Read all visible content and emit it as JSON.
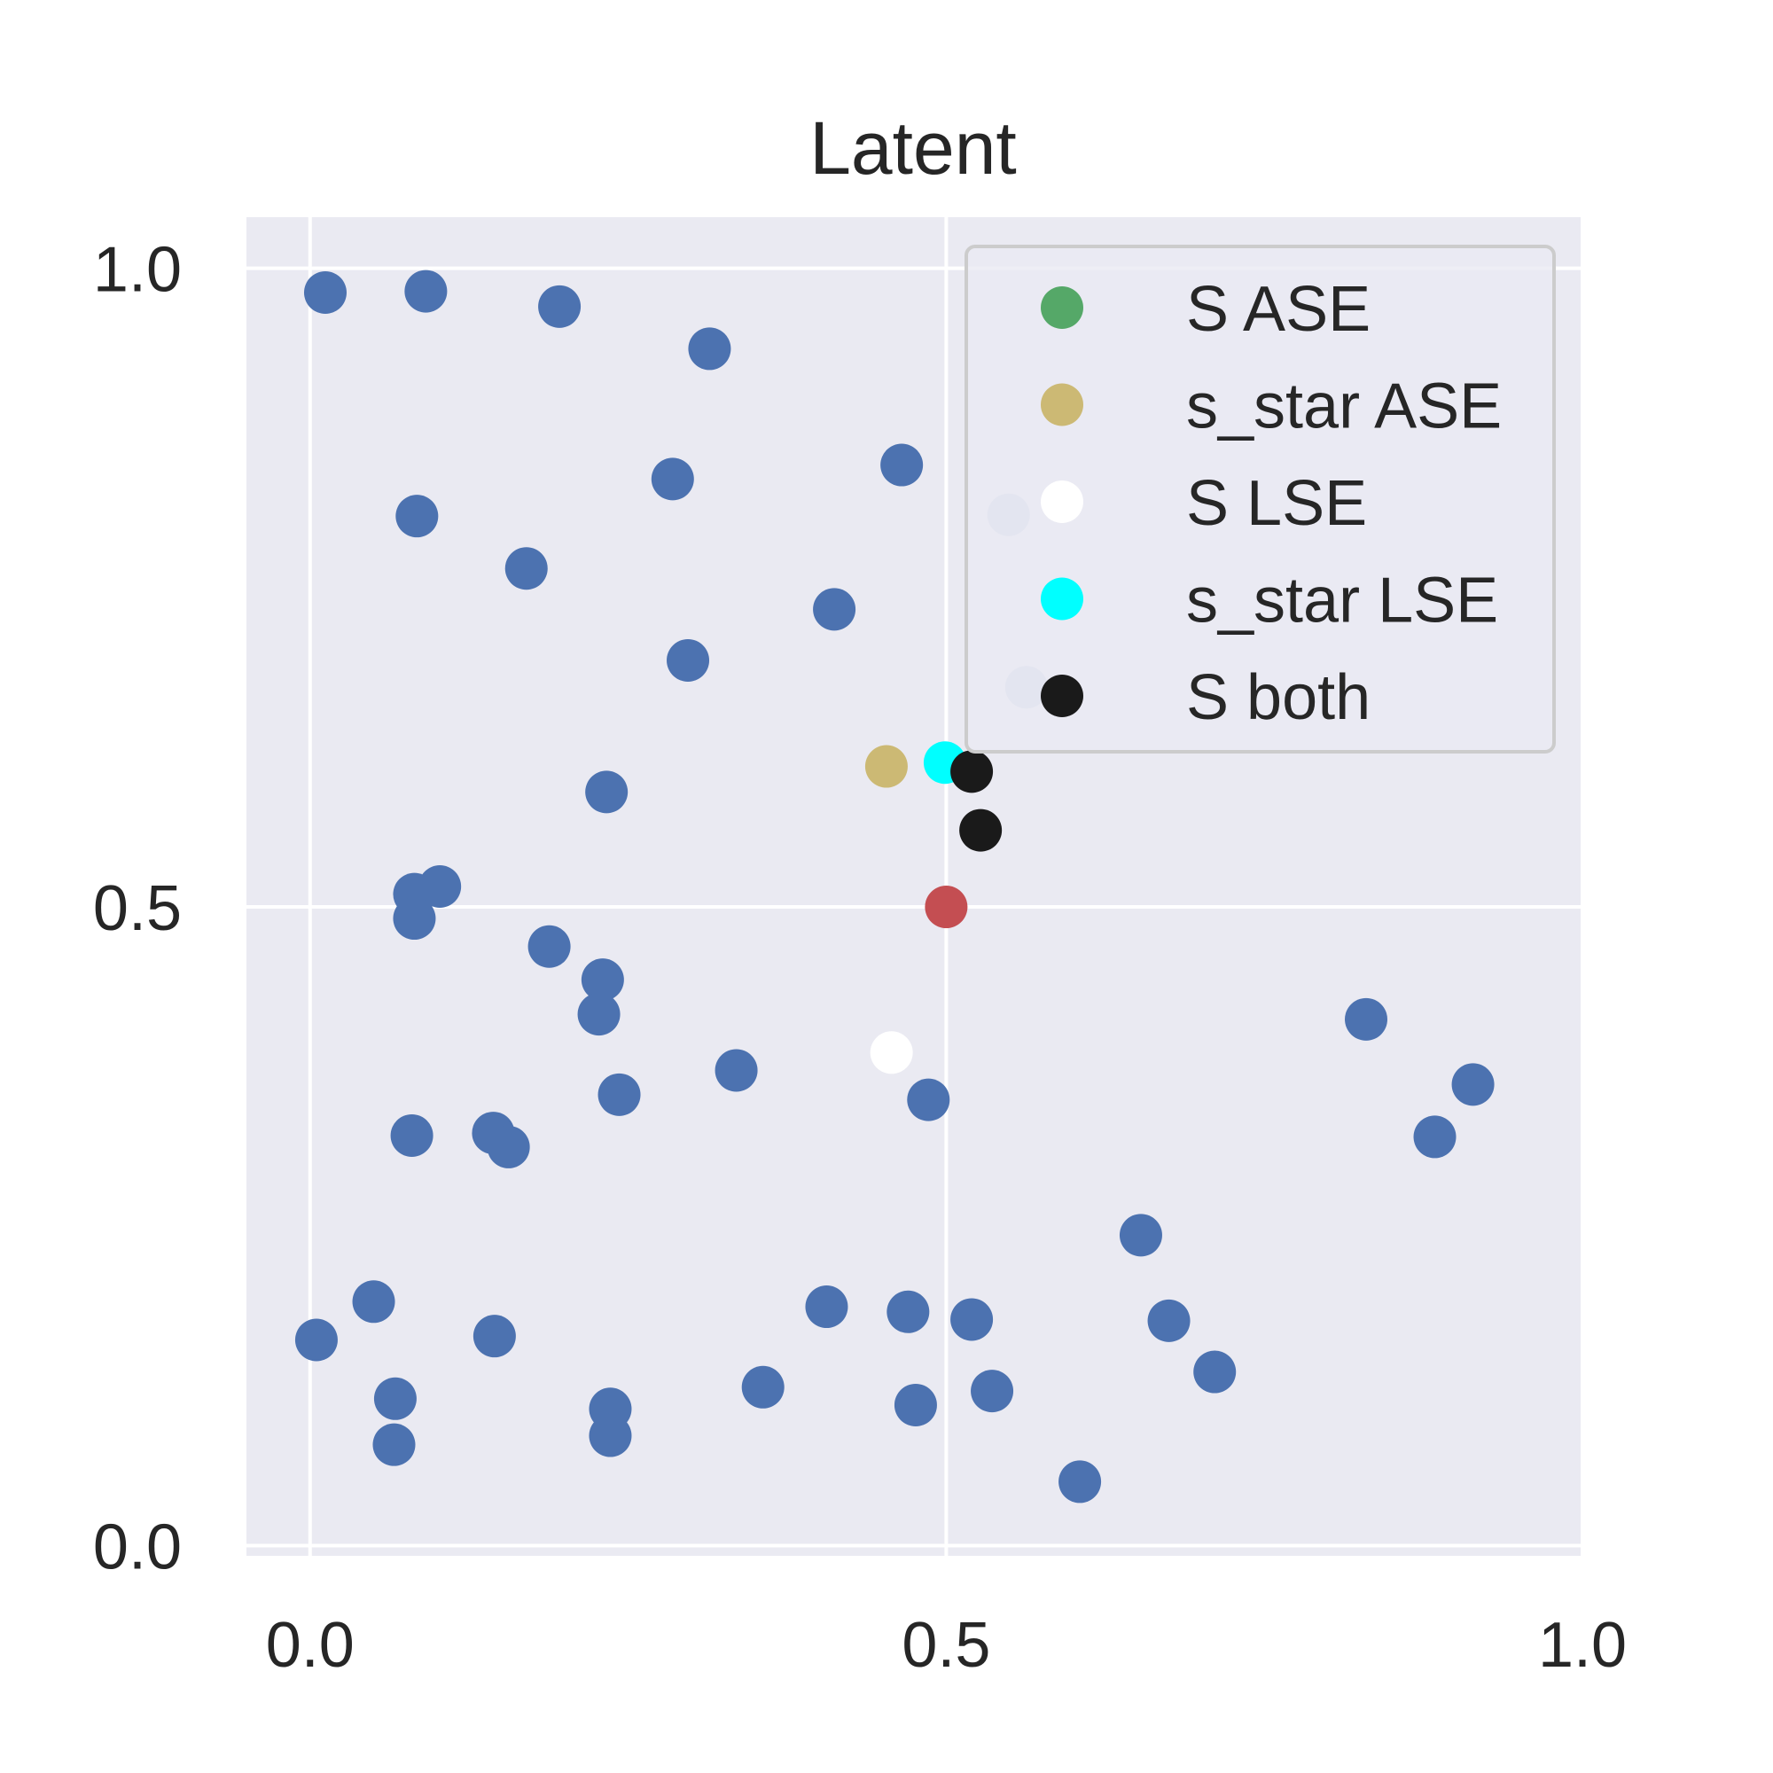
{
  "chart_data": {
    "type": "scatter",
    "title": "Latent",
    "xlabel": "",
    "ylabel": "",
    "xlim": [
      -0.05,
      1.0
    ],
    "ylim": [
      -0.008,
      1.04
    ],
    "xticks": [
      0.0,
      0.5,
      1.0
    ],
    "yticks": [
      0.0,
      0.5,
      1.0
    ],
    "xtick_labels": [
      "0.0",
      "0.5",
      "1.0"
    ],
    "ytick_labels": [
      "0.0",
      "0.5",
      "1.0"
    ],
    "grid": true,
    "background": "#eaeaf2",
    "grid_color": "#ffffff",
    "legend_position": "top-right",
    "series": [
      {
        "label": "",
        "color": "#4c72b0",
        "points": [
          [
            0.012,
            0.981
          ],
          [
            0.091,
            0.982
          ],
          [
            0.196,
            0.97
          ],
          [
            0.314,
            0.937
          ],
          [
            0.465,
            0.846
          ],
          [
            0.285,
            0.835
          ],
          [
            0.084,
            0.806
          ],
          [
            0.17,
            0.765
          ],
          [
            0.412,
            0.733
          ],
          [
            0.297,
            0.693
          ],
          [
            0.233,
            0.59
          ],
          [
            0.102,
            0.516
          ],
          [
            0.082,
            0.51
          ],
          [
            0.082,
            0.491
          ],
          [
            0.188,
            0.469
          ],
          [
            0.23,
            0.443
          ],
          [
            0.227,
            0.416
          ],
          [
            0.335,
            0.372
          ],
          [
            0.243,
            0.353
          ],
          [
            0.486,
            0.349
          ],
          [
            0.08,
            0.321
          ],
          [
            0.144,
            0.323
          ],
          [
            0.156,
            0.312
          ],
          [
            0.83,
            0.412
          ],
          [
            0.914,
            0.361
          ],
          [
            0.884,
            0.32
          ],
          [
            0.653,
            0.243
          ],
          [
            0.05,
            0.191
          ],
          [
            0.005,
            0.161
          ],
          [
            0.145,
            0.164
          ],
          [
            0.406,
            0.187
          ],
          [
            0.47,
            0.183
          ],
          [
            0.52,
            0.177
          ],
          [
            0.675,
            0.176
          ],
          [
            0.711,
            0.136
          ],
          [
            0.067,
            0.115
          ],
          [
            0.236,
            0.107
          ],
          [
            0.236,
            0.086
          ],
          [
            0.066,
            0.079
          ],
          [
            0.356,
            0.124
          ],
          [
            0.476,
            0.11
          ],
          [
            0.536,
            0.121
          ],
          [
            0.605,
            0.05
          ]
        ]
      },
      {
        "label": "",
        "color": "#c9d1e4",
        "points": [
          [
            0.549,
            0.807
          ],
          [
            0.563,
            0.672
          ]
        ]
      },
      {
        "label": "s_star ASE",
        "color": "#ccb974",
        "points": [
          [
            0.453,
            0.61
          ]
        ]
      },
      {
        "label": "S LSE",
        "color": "#ffffff",
        "points": [
          [
            0.457,
            0.386
          ]
        ]
      },
      {
        "label": "s_star LSE",
        "color": "#00ffff",
        "points": [
          [
            0.499,
            0.613
          ]
        ]
      },
      {
        "label": "S both",
        "color": "#1a1a1a",
        "points": [
          [
            0.52,
            0.606
          ],
          [
            0.527,
            0.56
          ]
        ]
      },
      {
        "label": "",
        "color": "#c44e52",
        "points": [
          [
            0.5,
            0.5
          ]
        ]
      }
    ],
    "legend": [
      {
        "label": "S ASE",
        "color": "#55a868"
      },
      {
        "label": "s_star ASE",
        "color": "#ccb974"
      },
      {
        "label": "S LSE",
        "color": "#ffffff"
      },
      {
        "label": "s_star LSE",
        "color": "#00ffff"
      },
      {
        "label": "S both",
        "color": "#1a1a1a"
      }
    ]
  }
}
